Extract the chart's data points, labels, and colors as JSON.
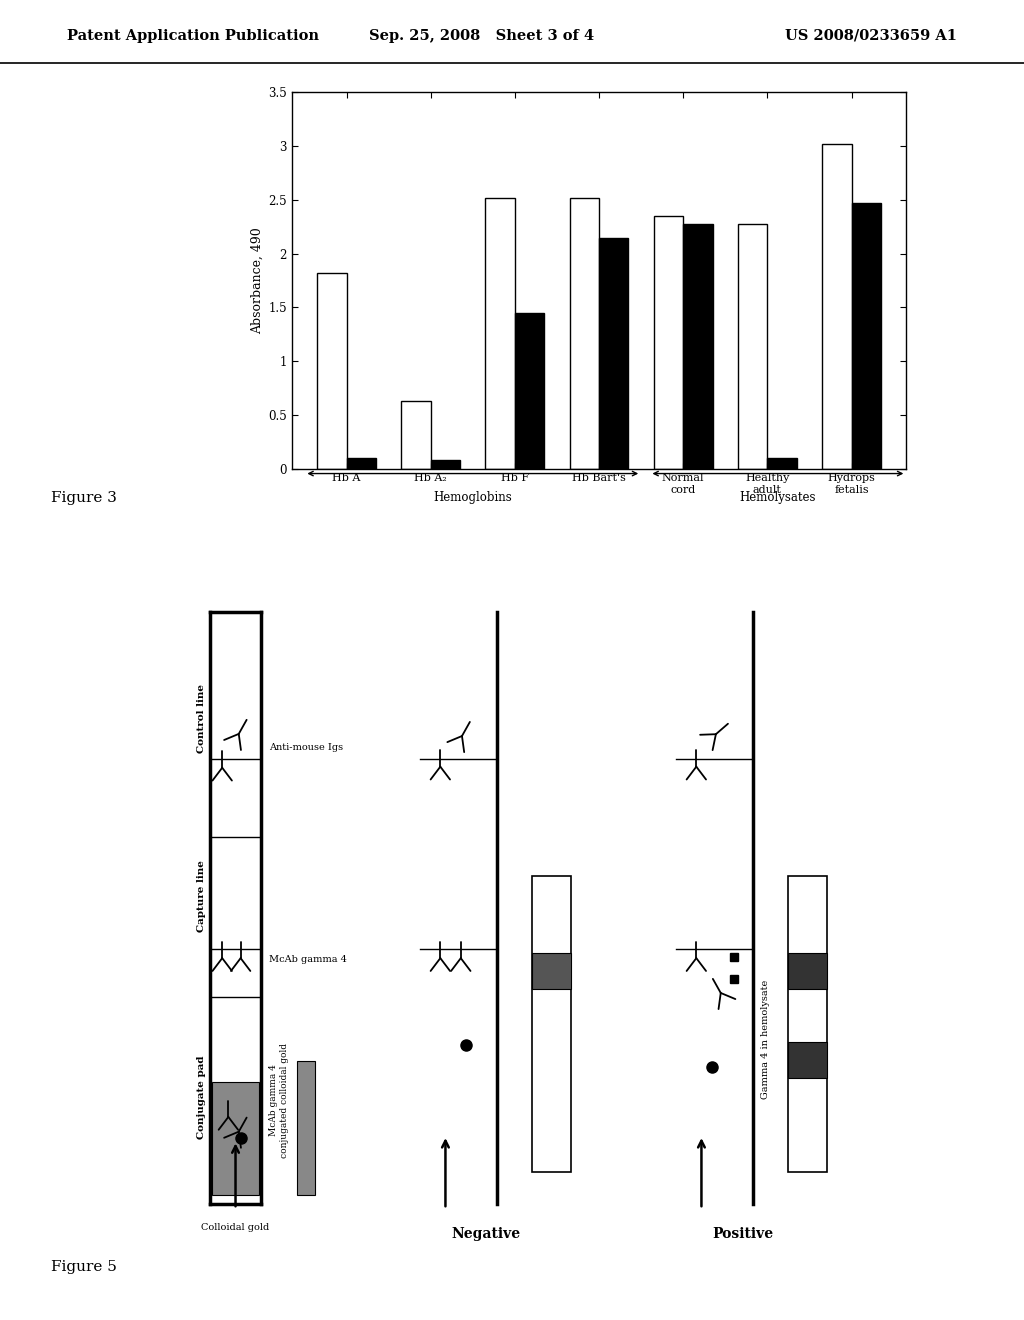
{
  "header_left": "Patent Application Publication",
  "header_center": "Sep. 25, 2008   Sheet 3 of 4",
  "header_right": "US 2008/0233659 A1",
  "ylabel": "Absorbance, 490",
  "ylim": [
    0,
    3.5
  ],
  "yticks": [
    0,
    0.5,
    1.0,
    1.5,
    2.0,
    2.5,
    3.0,
    3.5
  ],
  "categories": [
    "Hb A",
    "Hb A₂",
    "Hb F",
    "Hb Bart's",
    "Normal\ncord",
    "Healthy\nadult",
    "Hydrops\nfetalis"
  ],
  "white_bars": [
    1.82,
    0.63,
    2.52,
    2.52,
    2.35,
    2.28,
    3.02
  ],
  "black_bars": [
    0.1,
    0.08,
    1.45,
    2.15,
    2.28,
    0.1,
    2.47
  ],
  "figure3_label": "Figure 3",
  "figure5_label": "Figure 5",
  "background_color": "#ffffff",
  "bar_width": 0.35
}
